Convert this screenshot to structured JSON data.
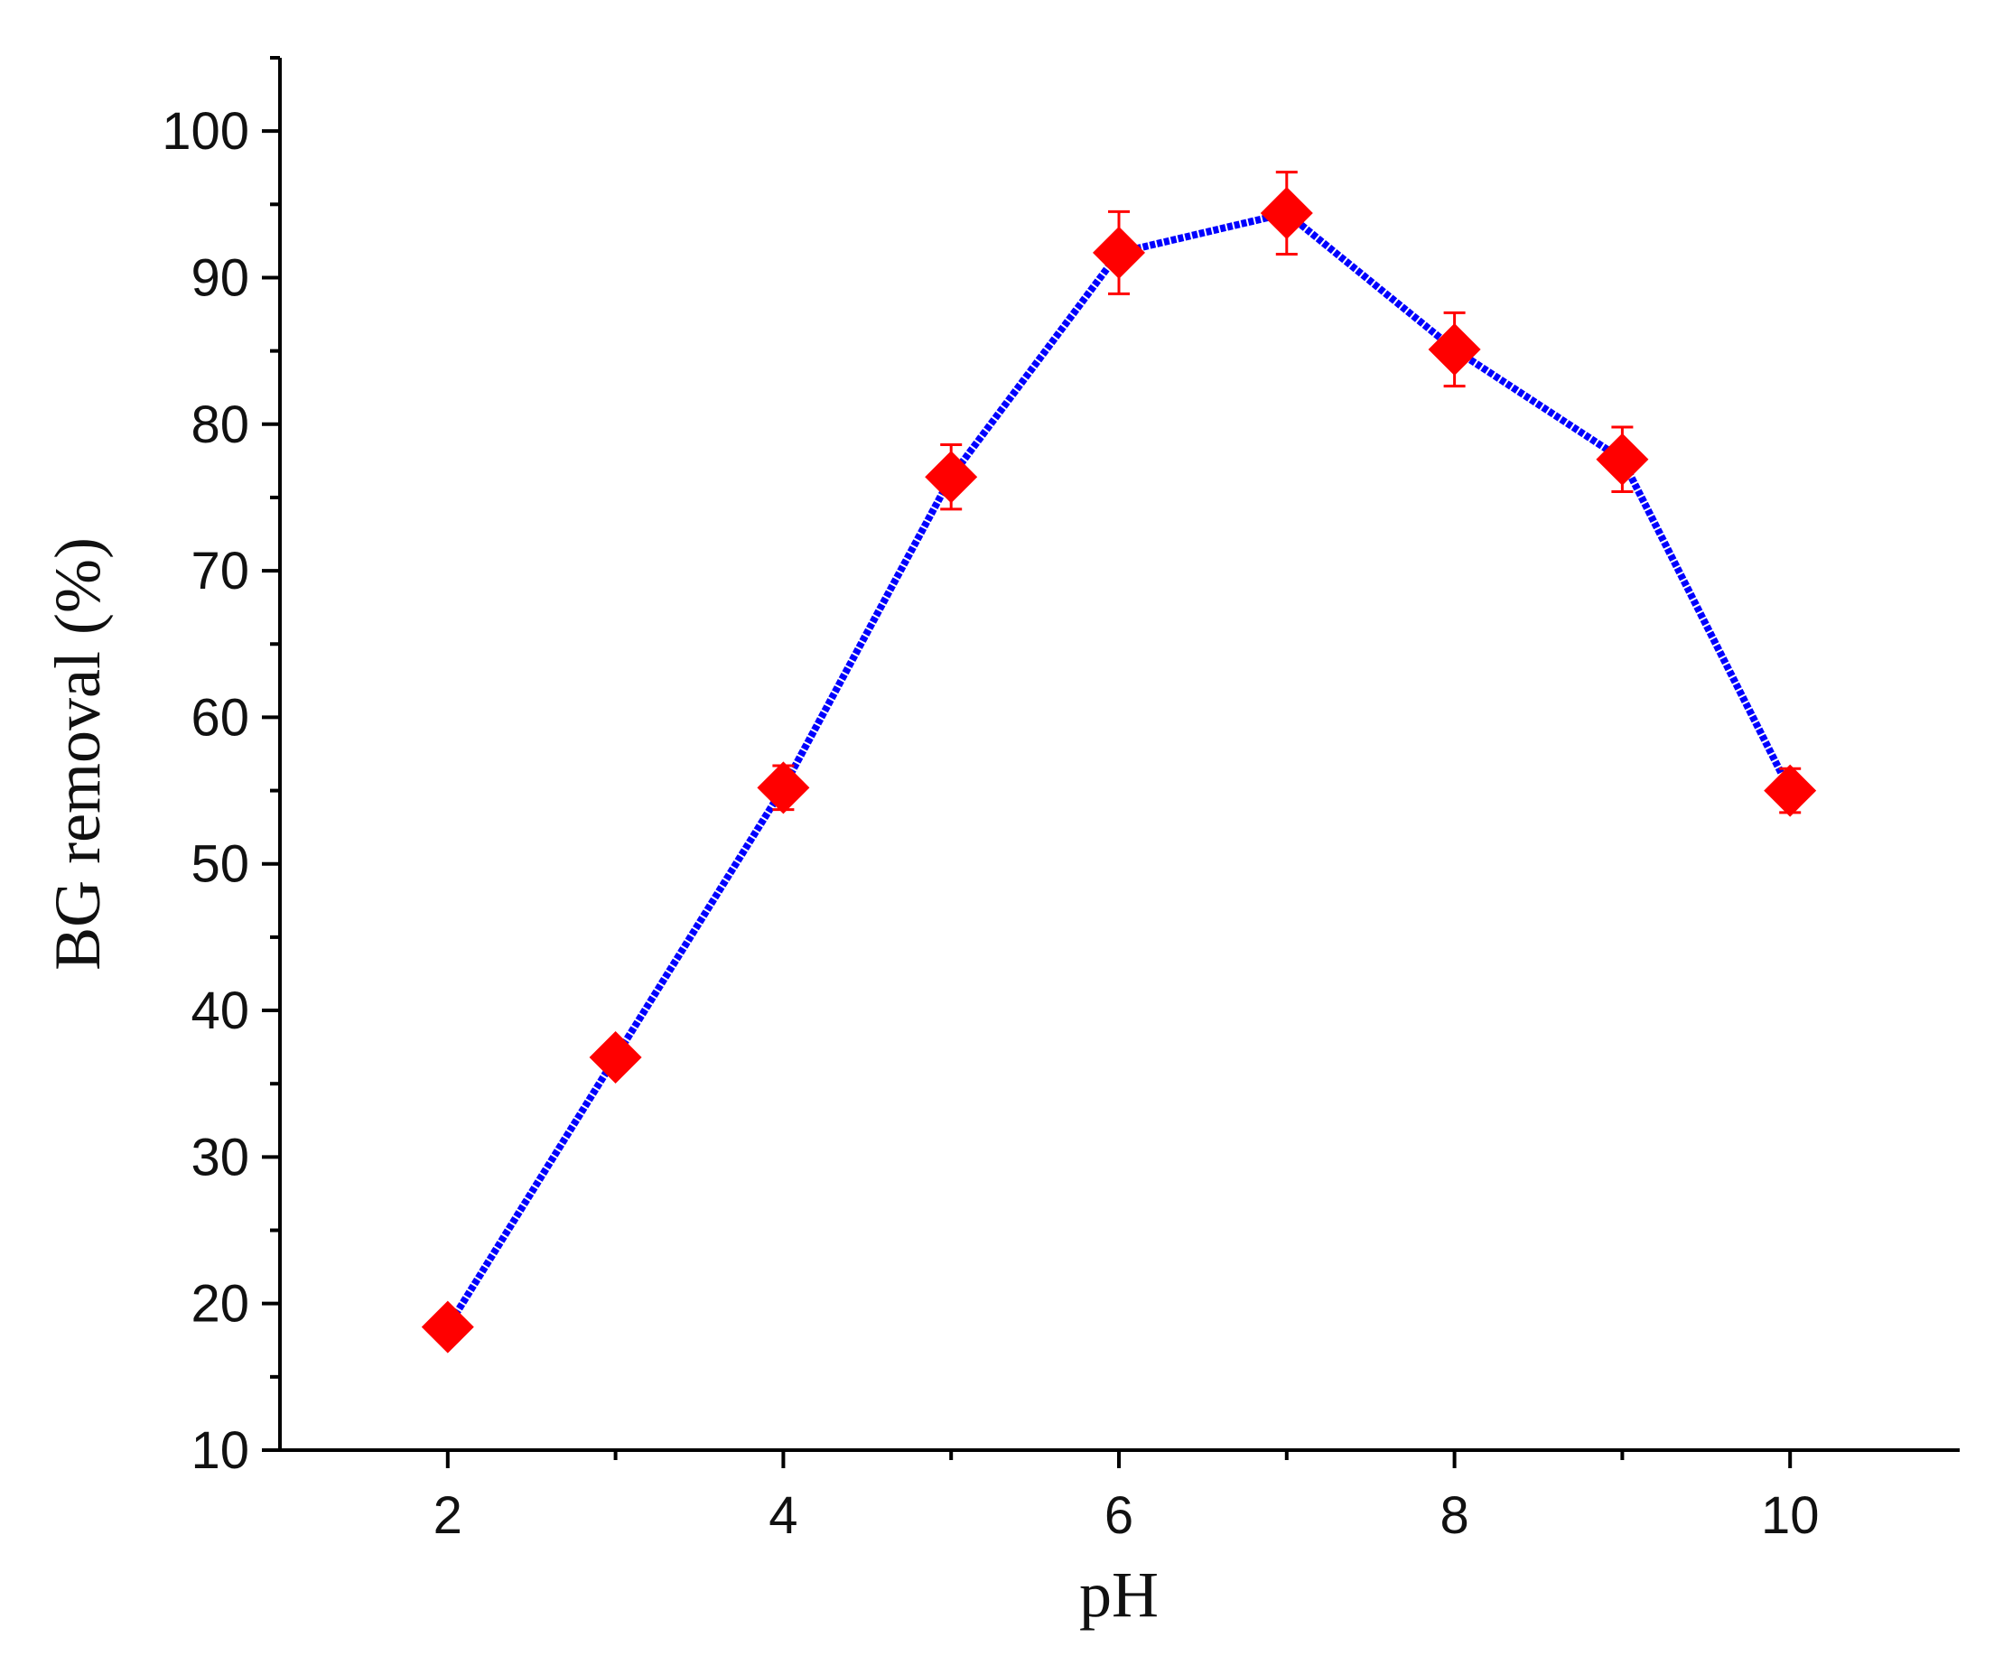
{
  "chart_data": {
    "type": "line",
    "x_label": "pH",
    "y_label": "BG removal (%)",
    "x": [
      2,
      3,
      4,
      5,
      6,
      7,
      8,
      9,
      10
    ],
    "series": [
      {
        "color": "#0000ff",
        "marker_color": "#ff0000",
        "values": [
          18.4,
          36.8,
          55.2,
          76.4,
          91.7,
          94.4,
          85.1,
          77.6,
          55.0
        ],
        "errors": [
          0.5,
          0.5,
          1.5,
          2.2,
          2.8,
          2.8,
          2.5,
          2.2,
          1.5
        ]
      }
    ],
    "xlim": [
      1,
      11
    ],
    "xticks": [
      2,
      4,
      6,
      8,
      10
    ],
    "xminorticks": [
      3,
      5,
      7,
      9
    ],
    "ylim": [
      10,
      105
    ],
    "yticks": [
      10,
      20,
      30,
      40,
      50,
      60,
      70,
      80,
      90,
      100
    ],
    "yminorticks": [
      15,
      25,
      35,
      45,
      55,
      65,
      75,
      85,
      95,
      105
    ],
    "grid": false
  }
}
